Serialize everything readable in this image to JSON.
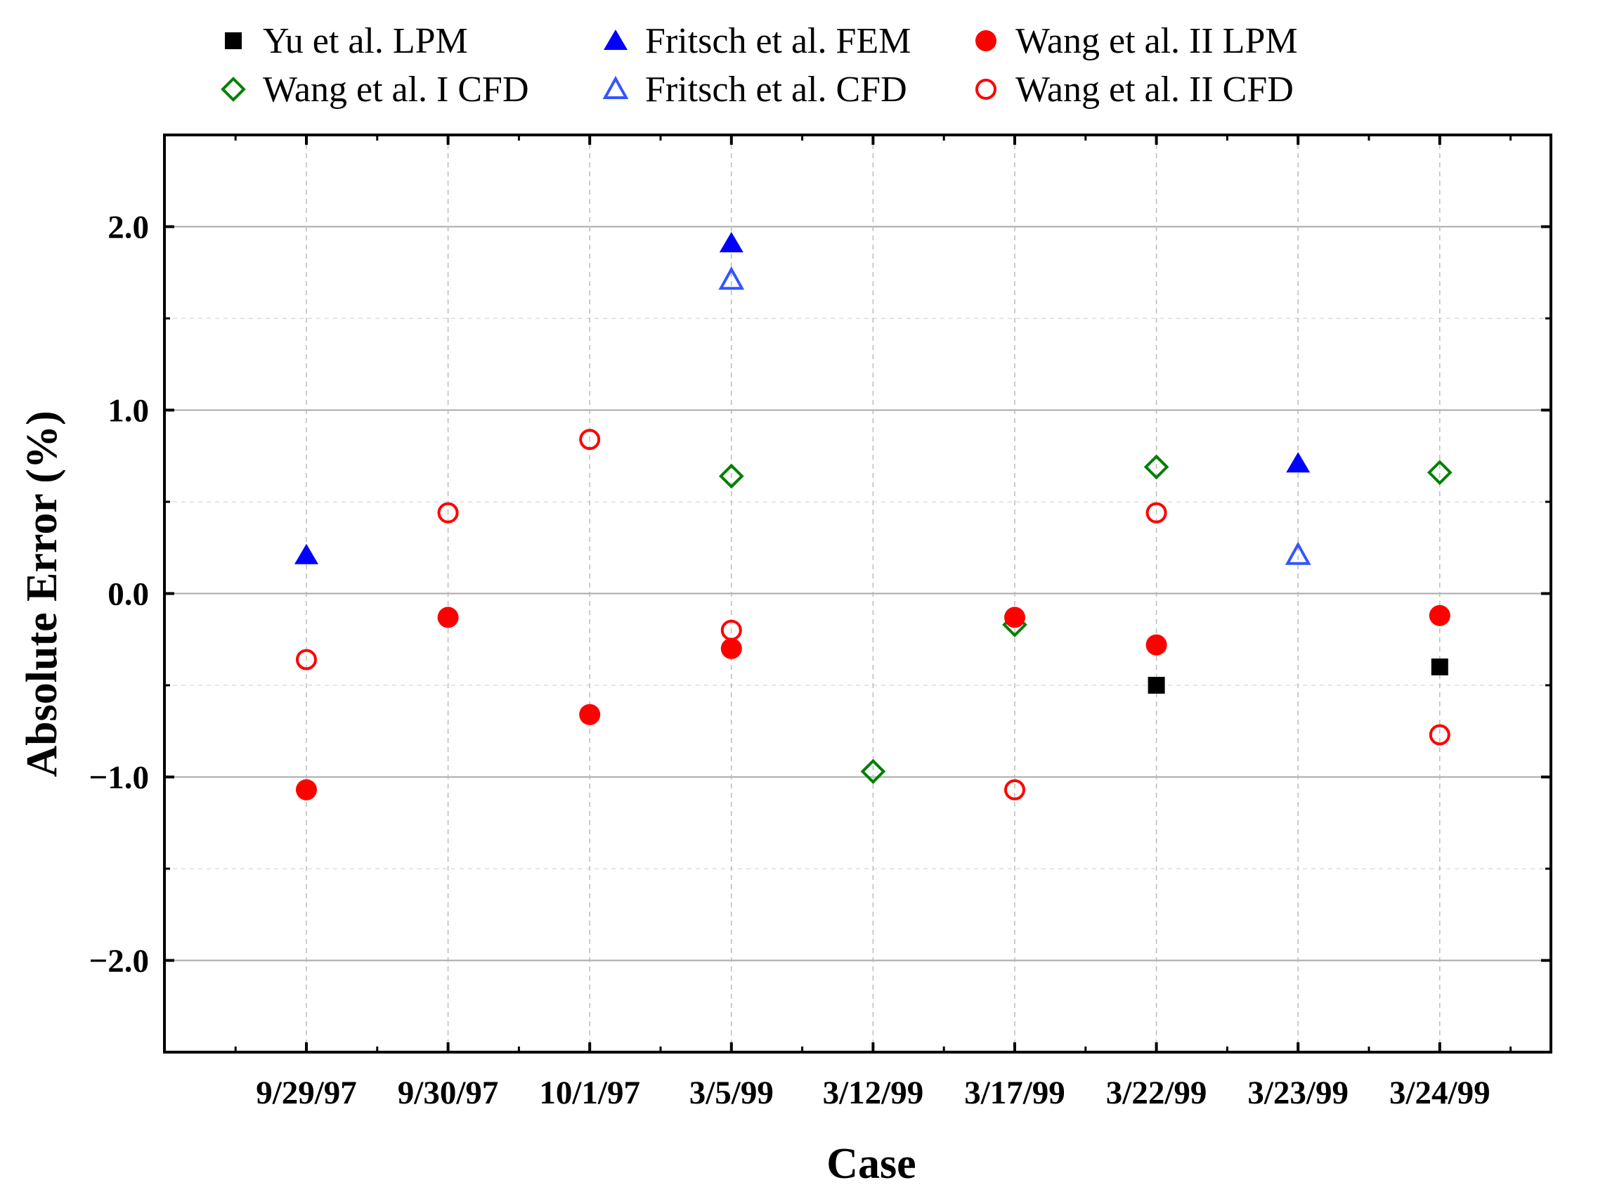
{
  "chart_data": {
    "type": "scatter",
    "title": "",
    "xlabel": "Case",
    "ylabel": "Absolute Error (%)",
    "categories": [
      "9/29/97",
      "9/30/97",
      "10/1/97",
      "3/5/99",
      "3/12/99",
      "3/17/99",
      "3/22/99",
      "3/23/99",
      "3/24/99"
    ],
    "ylim": [
      -2.5,
      2.5
    ],
    "yticks": [
      -2.0,
      -1.0,
      0.0,
      1.0,
      2.0
    ],
    "ytick_labels": [
      "−2.0",
      "−1.0",
      "0.0",
      "1.0",
      "2.0"
    ],
    "grid": true,
    "legend_position": "top",
    "series": [
      {
        "name": "Yu et al. LPM",
        "marker": "square-filled",
        "color": "#000000",
        "values": [
          null,
          null,
          null,
          null,
          null,
          null,
          -0.5,
          null,
          -0.4
        ]
      },
      {
        "name": "Wang et al. I CFD",
        "marker": "diamond-open",
        "color": "#008000",
        "values": [
          null,
          null,
          null,
          0.64,
          -0.97,
          -0.17,
          0.69,
          null,
          0.66
        ]
      },
      {
        "name": "Fritsch et al. FEM",
        "marker": "triangle-filled",
        "color": "#0000FF",
        "values": [
          0.21,
          null,
          null,
          1.91,
          null,
          null,
          null,
          0.71,
          null
        ]
      },
      {
        "name": "Fritsch et al. CFD",
        "marker": "triangle-open",
        "color": "#3355FF",
        "values": [
          null,
          null,
          null,
          1.71,
          null,
          null,
          null,
          0.21,
          null
        ]
      },
      {
        "name": "Wang et al. II LPM",
        "marker": "circle-filled",
        "color": "#FF0000",
        "values": [
          -1.07,
          -0.13,
          -0.66,
          -0.3,
          null,
          -0.13,
          -0.28,
          null,
          -0.12
        ]
      },
      {
        "name": "Wang et al. II CFD",
        "marker": "circle-open",
        "color": "#FF0000",
        "values": [
          -0.36,
          0.44,
          0.84,
          -0.2,
          null,
          -1.07,
          0.44,
          null,
          -0.77
        ]
      }
    ]
  }
}
